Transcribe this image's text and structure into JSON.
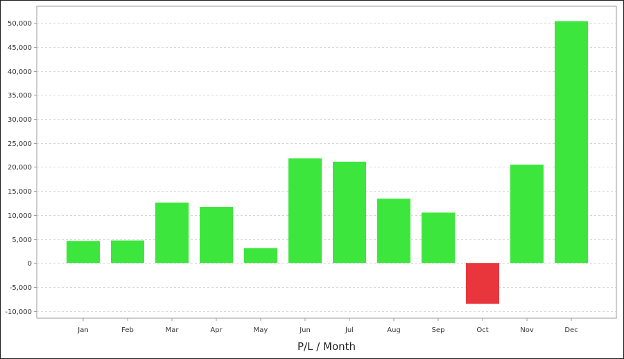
{
  "chart_data": {
    "type": "bar",
    "xlabel": "P/L / Month",
    "ylabel": "",
    "categories": [
      "Jan",
      "Feb",
      "Mar",
      "Apr",
      "May",
      "Jun",
      "Jul",
      "Aug",
      "Sep",
      "Oct",
      "Nov",
      "Dec"
    ],
    "values": [
      4600,
      4700,
      12600,
      11700,
      3100,
      21800,
      21100,
      13400,
      10500,
      -8500,
      20500,
      50400
    ],
    "ylim": [
      -11500,
      53500
    ],
    "yticks": [
      -10000,
      -5000,
      0,
      5000,
      10000,
      15000,
      20000,
      25000,
      30000,
      35000,
      40000,
      45000,
      50000
    ],
    "ytick_labels": [
      "-10,000",
      "-5,000",
      "0",
      "5,000",
      "10,000",
      "15,000",
      "20,000",
      "25,000",
      "30,000",
      "35,000",
      "40,000",
      "45,000",
      "50,000"
    ],
    "grid": true,
    "colors": {
      "positive": "#3de63d",
      "negative": "#e8363c",
      "grid": "#d6d6d6",
      "axis": "#9a9a9a"
    }
  }
}
